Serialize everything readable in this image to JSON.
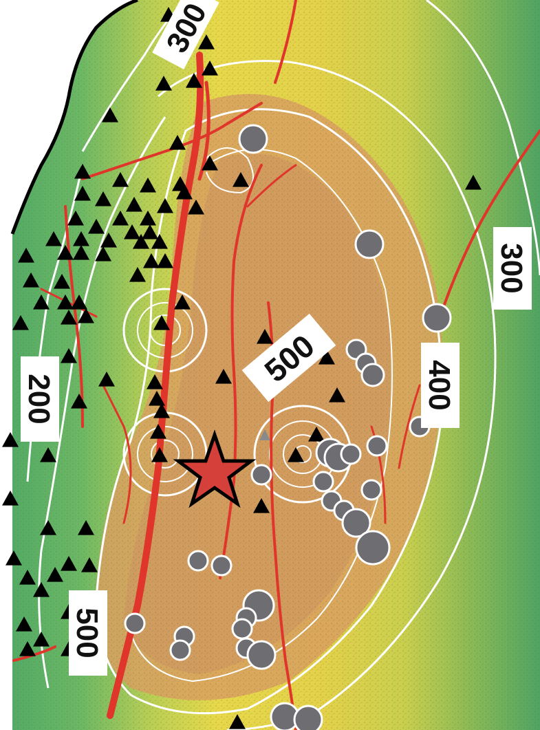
{
  "map": {
    "contour_labels": [
      {
        "id": "label-300-top",
        "text": "300"
      },
      {
        "id": "label-300-right",
        "text": "300"
      },
      {
        "id": "label-200-left",
        "text": "200"
      },
      {
        "id": "label-500-center",
        "text": "500"
      },
      {
        "id": "label-400-right",
        "text": "400"
      },
      {
        "id": "label-500-bottom",
        "text": "500"
      }
    ],
    "legend_semantics": {
      "contour_values": [
        "200",
        "300",
        "400",
        "500"
      ],
      "contour_color": "#ffffff",
      "fault_color": "#e0352b",
      "epicenter_color": "#d6403a",
      "station_color": "#000000",
      "event_circle_color": "#6e6e72",
      "colormap_low": "#57ad6b",
      "colormap_mid": "#e3d84a",
      "colormap_high": "#d99a5f",
      "coastline_color": "#000000"
    },
    "icons": {
      "epicenter": "star-icon",
      "station": "triangle-icon",
      "event": "circle-icon"
    }
  }
}
